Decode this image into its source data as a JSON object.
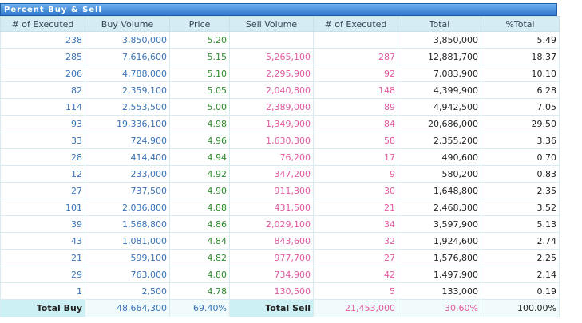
{
  "title": "Percent Buy & Sell",
  "columns": [
    "# of Executed",
    "Buy Volume",
    "Price",
    "Sell Volume",
    "# of Executed",
    "Total",
    "%Total"
  ],
  "rows": [
    {
      "buy_exec": "238",
      "buy_vol": "3,850,000",
      "price": "5.20",
      "sell_vol": "",
      "sell_exec": "",
      "total": "3,850,000",
      "pct": "5.49"
    },
    {
      "buy_exec": "285",
      "buy_vol": "7,616,600",
      "price": "5.15",
      "sell_vol": "5,265,100",
      "sell_exec": "287",
      "total": "12,881,700",
      "pct": "18.37"
    },
    {
      "buy_exec": "206",
      "buy_vol": "4,788,000",
      "price": "5.10",
      "sell_vol": "2,295,900",
      "sell_exec": "92",
      "total": "7,083,900",
      "pct": "10.10"
    },
    {
      "buy_exec": "82",
      "buy_vol": "2,359,100",
      "price": "5.05",
      "sell_vol": "2,040,800",
      "sell_exec": "148",
      "total": "4,399,900",
      "pct": "6.28"
    },
    {
      "buy_exec": "114",
      "buy_vol": "2,553,500",
      "price": "5.00",
      "sell_vol": "2,389,000",
      "sell_exec": "89",
      "total": "4,942,500",
      "pct": "7.05"
    },
    {
      "buy_exec": "93",
      "buy_vol": "19,336,100",
      "price": "4.98",
      "sell_vol": "1,349,900",
      "sell_exec": "84",
      "total": "20,686,000",
      "pct": "29.50"
    },
    {
      "buy_exec": "33",
      "buy_vol": "724,900",
      "price": "4.96",
      "sell_vol": "1,630,300",
      "sell_exec": "58",
      "total": "2,355,200",
      "pct": "3.36"
    },
    {
      "buy_exec": "28",
      "buy_vol": "414,400",
      "price": "4.94",
      "sell_vol": "76,200",
      "sell_exec": "17",
      "total": "490,600",
      "pct": "0.70"
    },
    {
      "buy_exec": "12",
      "buy_vol": "233,000",
      "price": "4.92",
      "sell_vol": "347,200",
      "sell_exec": "9",
      "total": "580,200",
      "pct": "0.83"
    },
    {
      "buy_exec": "27",
      "buy_vol": "737,500",
      "price": "4.90",
      "sell_vol": "911,300",
      "sell_exec": "30",
      "total": "1,648,800",
      "pct": "2.35"
    },
    {
      "buy_exec": "101",
      "buy_vol": "2,036,800",
      "price": "4.88",
      "sell_vol": "431,500",
      "sell_exec": "21",
      "total": "2,468,300",
      "pct": "3.52"
    },
    {
      "buy_exec": "39",
      "buy_vol": "1,568,800",
      "price": "4.86",
      "sell_vol": "2,029,100",
      "sell_exec": "34",
      "total": "3,597,900",
      "pct": "5.13"
    },
    {
      "buy_exec": "43",
      "buy_vol": "1,081,000",
      "price": "4.84",
      "sell_vol": "843,600",
      "sell_exec": "32",
      "total": "1,924,600",
      "pct": "2.74"
    },
    {
      "buy_exec": "21",
      "buy_vol": "599,100",
      "price": "4.82",
      "sell_vol": "977,700",
      "sell_exec": "27",
      "total": "1,576,800",
      "pct": "2.25"
    },
    {
      "buy_exec": "29",
      "buy_vol": "763,000",
      "price": "4.80",
      "sell_vol": "734,900",
      "sell_exec": "42",
      "total": "1,497,900",
      "pct": "2.14"
    },
    {
      "buy_exec": "1",
      "buy_vol": "2,500",
      "price": "4.78",
      "sell_vol": "130,500",
      "sell_exec": "5",
      "total": "133,000",
      "pct": "0.19"
    }
  ],
  "totals": {
    "buy_label": "Total Buy",
    "buy_vol": "48,664,300",
    "buy_pct": "69.40%",
    "sell_label": "Total Sell",
    "sell_vol": "21,453,000",
    "sell_pct": "30.60%",
    "total_pct": "100.00%"
  },
  "colors": {
    "buy": "#3a73b5",
    "price": "#2f8a2f",
    "sell": "#e05aa0",
    "header_bg": "#d6ecf4",
    "title_bg": "#2f77c9"
  }
}
